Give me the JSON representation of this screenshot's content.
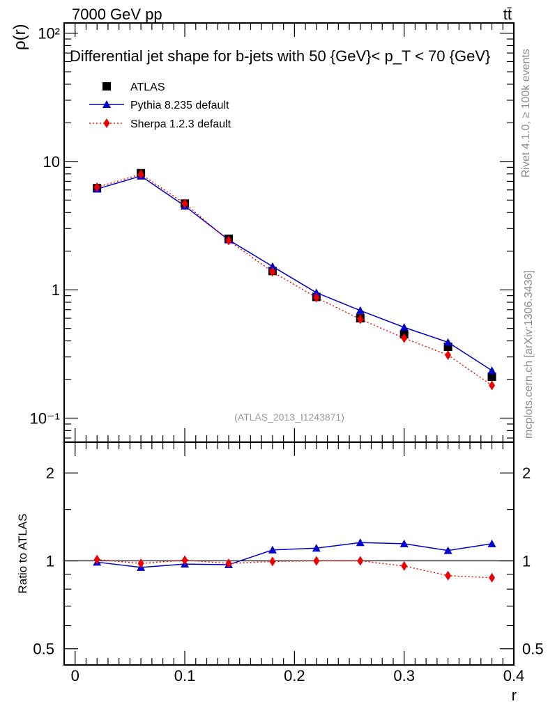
{
  "header": {
    "left": "7000 GeV pp",
    "right": "tt̄"
  },
  "sidebar": {
    "rivet": "Rivet 4.1.0, ≥ 100k events",
    "mcplots": "mcplots.cern.ch [arXiv:1306.3436]"
  },
  "chart_data": [
    {
      "type": "scatter",
      "title": "Differential jet shape for b-jets with 50 {GeV}< p_T < 70 {GeV}",
      "ylabel": "ρ(r)",
      "yscale": "log",
      "ylim": [
        0.065,
        120
      ],
      "xlim": [
        -0.01,
        0.4
      ],
      "watermark": "(ATLAS_2013_I1243871)",
      "legend_position": "top-left",
      "x": [
        0.02,
        0.06,
        0.1,
        0.14,
        0.18,
        0.22,
        0.26,
        0.3,
        0.34,
        0.38
      ],
      "y_ticks": [
        {
          "value": 0.1,
          "label": "10⁻¹"
        },
        {
          "value": 1,
          "label": "1"
        },
        {
          "value": 10,
          "label": "10"
        },
        {
          "value": 100,
          "label": "10²"
        }
      ],
      "series": [
        {
          "name": "ATLAS",
          "color": "#000000",
          "marker": "square",
          "line": "none",
          "values": [
            6.2,
            8.1,
            4.7,
            2.5,
            1.4,
            0.88,
            0.6,
            0.45,
            0.36,
            0.21
          ]
        },
        {
          "name": "Pythia 8.235 default",
          "color": "#0000cc",
          "marker": "triangle",
          "line": "solid",
          "values": [
            6.1,
            7.7,
            4.5,
            2.45,
            1.52,
            0.95,
            0.69,
            0.51,
            0.39,
            0.235
          ]
        },
        {
          "name": "Sherpa 1.2.3 default",
          "color": "#ee0000",
          "marker": "diamond",
          "line": "dotted",
          "values": [
            6.3,
            7.95,
            4.7,
            2.42,
            1.38,
            0.87,
            0.59,
            0.42,
            0.31,
            0.18
          ]
        }
      ]
    },
    {
      "type": "line",
      "ylabel": "Ratio to ATLAS",
      "xlabel": "r",
      "yscale": "log",
      "ylim": [
        0.44,
        2.55
      ],
      "xlim": [
        -0.01,
        0.4
      ],
      "x": [
        0.02,
        0.06,
        0.1,
        0.14,
        0.18,
        0.22,
        0.26,
        0.3,
        0.34,
        0.38
      ],
      "x_ticks": [
        {
          "value": 0,
          "label": "0"
        },
        {
          "value": 0.1,
          "label": "0.1"
        },
        {
          "value": 0.2,
          "label": "0.2"
        },
        {
          "value": 0.3,
          "label": "0.3"
        },
        {
          "value": 0.4,
          "label": "0.4"
        }
      ],
      "y_ticks": [
        {
          "value": 0.5,
          "label": "0.5"
        },
        {
          "value": 1,
          "label": "1"
        },
        {
          "value": 2,
          "label": "2"
        }
      ],
      "reference_line": 1,
      "series": [
        {
          "name": "Pythia 8.235 default",
          "color": "#0000cc",
          "marker": "triangle",
          "line": "solid",
          "values": [
            0.99,
            0.95,
            0.975,
            0.97,
            1.09,
            1.105,
            1.155,
            1.145,
            1.085,
            1.145
          ]
        },
        {
          "name": "Sherpa 1.2.3 default",
          "color": "#ee0000",
          "marker": "diamond",
          "line": "dotted",
          "values": [
            1.01,
            0.98,
            1.005,
            0.98,
            0.995,
            1.0,
            1.0,
            0.96,
            0.89,
            0.875
          ]
        }
      ]
    }
  ]
}
